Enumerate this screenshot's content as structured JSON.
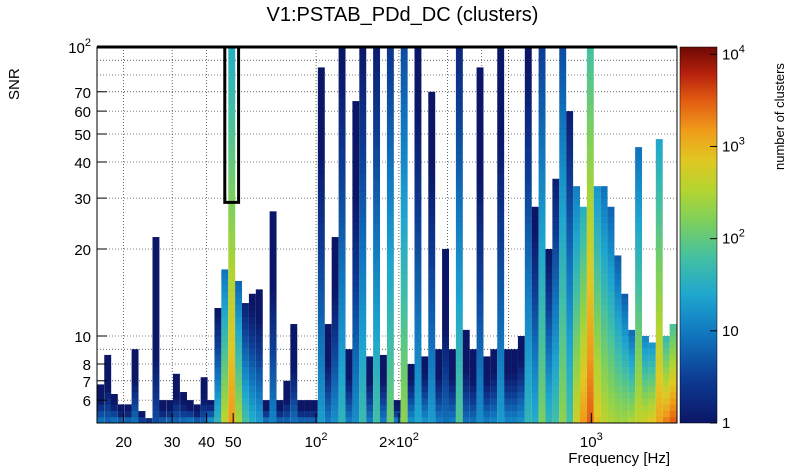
{
  "chart_data": {
    "type": "heatmap",
    "title": "V1:PSTAB_PDd_DC (clusters)",
    "xlabel": "Frequency [Hz]",
    "ylabel": "SNR",
    "zlabel": "number of clusters",
    "x_scale": "log",
    "y_scale": "log",
    "z_scale": "log",
    "xlim": [
      16,
      2048
    ],
    "ylim": [
      5,
      100
    ],
    "zlim": [
      1,
      12000
    ],
    "grid": true,
    "x_ticks": [
      {
        "value": 20,
        "label": "20"
      },
      {
        "value": 30,
        "label": "30"
      },
      {
        "value": 40,
        "label": "40"
      },
      {
        "value": 50,
        "label": "50"
      },
      {
        "value": 100,
        "label": "10^2"
      },
      {
        "value": 200,
        "label": "2×10^2"
      },
      {
        "value": 1000,
        "label": "10^3"
      }
    ],
    "y_ticks": [
      {
        "value": 6,
        "label": "6"
      },
      {
        "value": 7,
        "label": "7"
      },
      {
        "value": 8,
        "label": "8"
      },
      {
        "value": 10,
        "label": "10"
      },
      {
        "value": 20,
        "label": "20"
      },
      {
        "value": 30,
        "label": "30"
      },
      {
        "value": 40,
        "label": "40"
      },
      {
        "value": 50,
        "label": "50"
      },
      {
        "value": 60,
        "label": "60"
      },
      {
        "value": 70,
        "label": "70"
      },
      {
        "value": 100,
        "label": "10^2"
      }
    ],
    "z_ticks": [
      {
        "value": 1,
        "label": "1"
      },
      {
        "value": 10,
        "label": "10"
      },
      {
        "value": 100,
        "label": "10^2"
      },
      {
        "value": 1000,
        "label": "10^3"
      },
      {
        "value": 10000,
        "label": "10^4"
      }
    ],
    "columns": [
      {
        "f": 16.5,
        "top": 6.8,
        "base": 8
      },
      {
        "f": 17.5,
        "top": 8.6,
        "base": 6
      },
      {
        "f": 18.5,
        "top": 6.3,
        "base": 8
      },
      {
        "f": 19.6,
        "top": 5.8,
        "base": 5
      },
      {
        "f": 20.8,
        "top": 5.8,
        "base": 6
      },
      {
        "f": 22.0,
        "top": 9.0,
        "base": 8
      },
      {
        "f": 23.3,
        "top": 5.5,
        "base": 3
      },
      {
        "f": 24.7,
        "top": 5.2,
        "base": 2
      },
      {
        "f": 26.2,
        "top": 22.0,
        "base": 4
      },
      {
        "f": 27.7,
        "top": 6.0,
        "base": 5
      },
      {
        "f": 29.4,
        "top": 6.0,
        "base": 6
      },
      {
        "f": 31.1,
        "top": 7.4,
        "base": 6
      },
      {
        "f": 33.0,
        "top": 6.4,
        "base": 7
      },
      {
        "f": 34.9,
        "top": 6.0,
        "base": 8
      },
      {
        "f": 37.0,
        "top": 5.8,
        "base": 5
      },
      {
        "f": 39.2,
        "top": 7.2,
        "base": 6
      },
      {
        "f": 41.5,
        "top": 6.0,
        "base": 15
      },
      {
        "f": 44.0,
        "top": 12.5,
        "base": 40
      },
      {
        "f": 46.6,
        "top": 17.0,
        "base": 400
      },
      {
        "f": 49.4,
        "top": 100,
        "base": 1500
      },
      {
        "f": 52.3,
        "top": 15.5,
        "base": 300
      },
      {
        "f": 55.4,
        "top": 13.0,
        "base": 60
      },
      {
        "f": 58.7,
        "top": 14.0,
        "base": 30
      },
      {
        "f": 62.2,
        "top": 14.5,
        "base": 20
      },
      {
        "f": 65.9,
        "top": 6.0,
        "base": 8
      },
      {
        "f": 69.8,
        "top": 27.0,
        "base": 12
      },
      {
        "f": 73.9,
        "top": 6.0,
        "base": 6
      },
      {
        "f": 78.3,
        "top": 7.0,
        "base": 6
      },
      {
        "f": 83.0,
        "top": 11.0,
        "base": 8
      },
      {
        "f": 87.9,
        "top": 6.0,
        "base": 6
      },
      {
        "f": 93.1,
        "top": 6.0,
        "base": 6
      },
      {
        "f": 98.6,
        "top": 6.0,
        "base": 6
      },
      {
        "f": 104.5,
        "top": 85.0,
        "base": 20
      },
      {
        "f": 110.7,
        "top": 11.0,
        "base": 10
      },
      {
        "f": 117.3,
        "top": 22.0,
        "base": 15
      },
      {
        "f": 124.3,
        "top": 100,
        "base": 40
      },
      {
        "f": 131.7,
        "top": 9.0,
        "base": 10
      },
      {
        "f": 139.5,
        "top": 65.0,
        "base": 15
      },
      {
        "f": 147.8,
        "top": 100,
        "base": 50
      },
      {
        "f": 156.6,
        "top": 8.5,
        "base": 10
      },
      {
        "f": 165.9,
        "top": 100,
        "base": 60
      },
      {
        "f": 175.7,
        "top": 8.6,
        "base": 10
      },
      {
        "f": 186.2,
        "top": 100,
        "base": 120
      },
      {
        "f": 197.2,
        "top": 6.0,
        "base": 10
      },
      {
        "f": 209.0,
        "top": 100,
        "base": 200
      },
      {
        "f": 221.4,
        "top": 8.0,
        "base": 15
      },
      {
        "f": 234.5,
        "top": 100,
        "base": 25
      },
      {
        "f": 248.5,
        "top": 8.5,
        "base": 15
      },
      {
        "f": 263.2,
        "top": 70.0,
        "base": 20
      },
      {
        "f": 278.9,
        "top": 9.0,
        "base": 10
      },
      {
        "f": 295.4,
        "top": 20.0,
        "base": 8
      },
      {
        "f": 313.0,
        "top": 9.0,
        "base": 10
      },
      {
        "f": 331.6,
        "top": 100,
        "base": 80
      },
      {
        "f": 351.2,
        "top": 10.5,
        "base": 8
      },
      {
        "f": 372.1,
        "top": 9.0,
        "base": 8
      },
      {
        "f": 394.2,
        "top": 85.0,
        "base": 15
      },
      {
        "f": 417.6,
        "top": 8.5,
        "base": 10
      },
      {
        "f": 442.4,
        "top": 9.0,
        "base": 12
      },
      {
        "f": 468.6,
        "top": 100,
        "base": 20
      },
      {
        "f": 496.4,
        "top": 9.0,
        "base": 12
      },
      {
        "f": 525.9,
        "top": 9.0,
        "base": 12
      },
      {
        "f": 557.1,
        "top": 10.0,
        "base": 15
      },
      {
        "f": 590.2,
        "top": 100,
        "base": 40
      },
      {
        "f": 625.2,
        "top": 28.0,
        "base": 30
      },
      {
        "f": 662.3,
        "top": 100,
        "base": 150
      },
      {
        "f": 701.7,
        "top": 20.0,
        "base": 40
      },
      {
        "f": 743.3,
        "top": 35.0,
        "base": 60
      },
      {
        "f": 787.4,
        "top": 100,
        "base": 200
      },
      {
        "f": 834.2,
        "top": 60.0,
        "base": 60
      },
      {
        "f": 883.7,
        "top": 33.0,
        "base": 500
      },
      {
        "f": 936.2,
        "top": 28.0,
        "base": 1500
      },
      {
        "f": 991.8,
        "top": 100,
        "base": 3000
      },
      {
        "f": 1050.7,
        "top": 33.0,
        "base": 800
      },
      {
        "f": 1113.1,
        "top": 33.0,
        "base": 400
      },
      {
        "f": 1179.2,
        "top": 28.0,
        "base": 300
      },
      {
        "f": 1249.2,
        "top": 19.0,
        "base": 250
      },
      {
        "f": 1323.3,
        "top": 14.0,
        "base": 250
      },
      {
        "f": 1401.9,
        "top": 10.5,
        "base": 300
      },
      {
        "f": 1485.1,
        "top": 45.0,
        "base": 400
      },
      {
        "f": 1573.3,
        "top": 10.0,
        "base": 500
      },
      {
        "f": 1666.7,
        "top": 9.5,
        "base": 700
      },
      {
        "f": 1765.7,
        "top": 48.0,
        "base": 1200
      },
      {
        "f": 1870.5,
        "top": 10.0,
        "base": 2000
      },
      {
        "f": 1981.5,
        "top": 11.0,
        "base": 3000
      }
    ],
    "highlight_box": {
      "f_range": [
        46.6,
        52.3
      ],
      "snr_range": [
        29,
        100
      ]
    }
  }
}
